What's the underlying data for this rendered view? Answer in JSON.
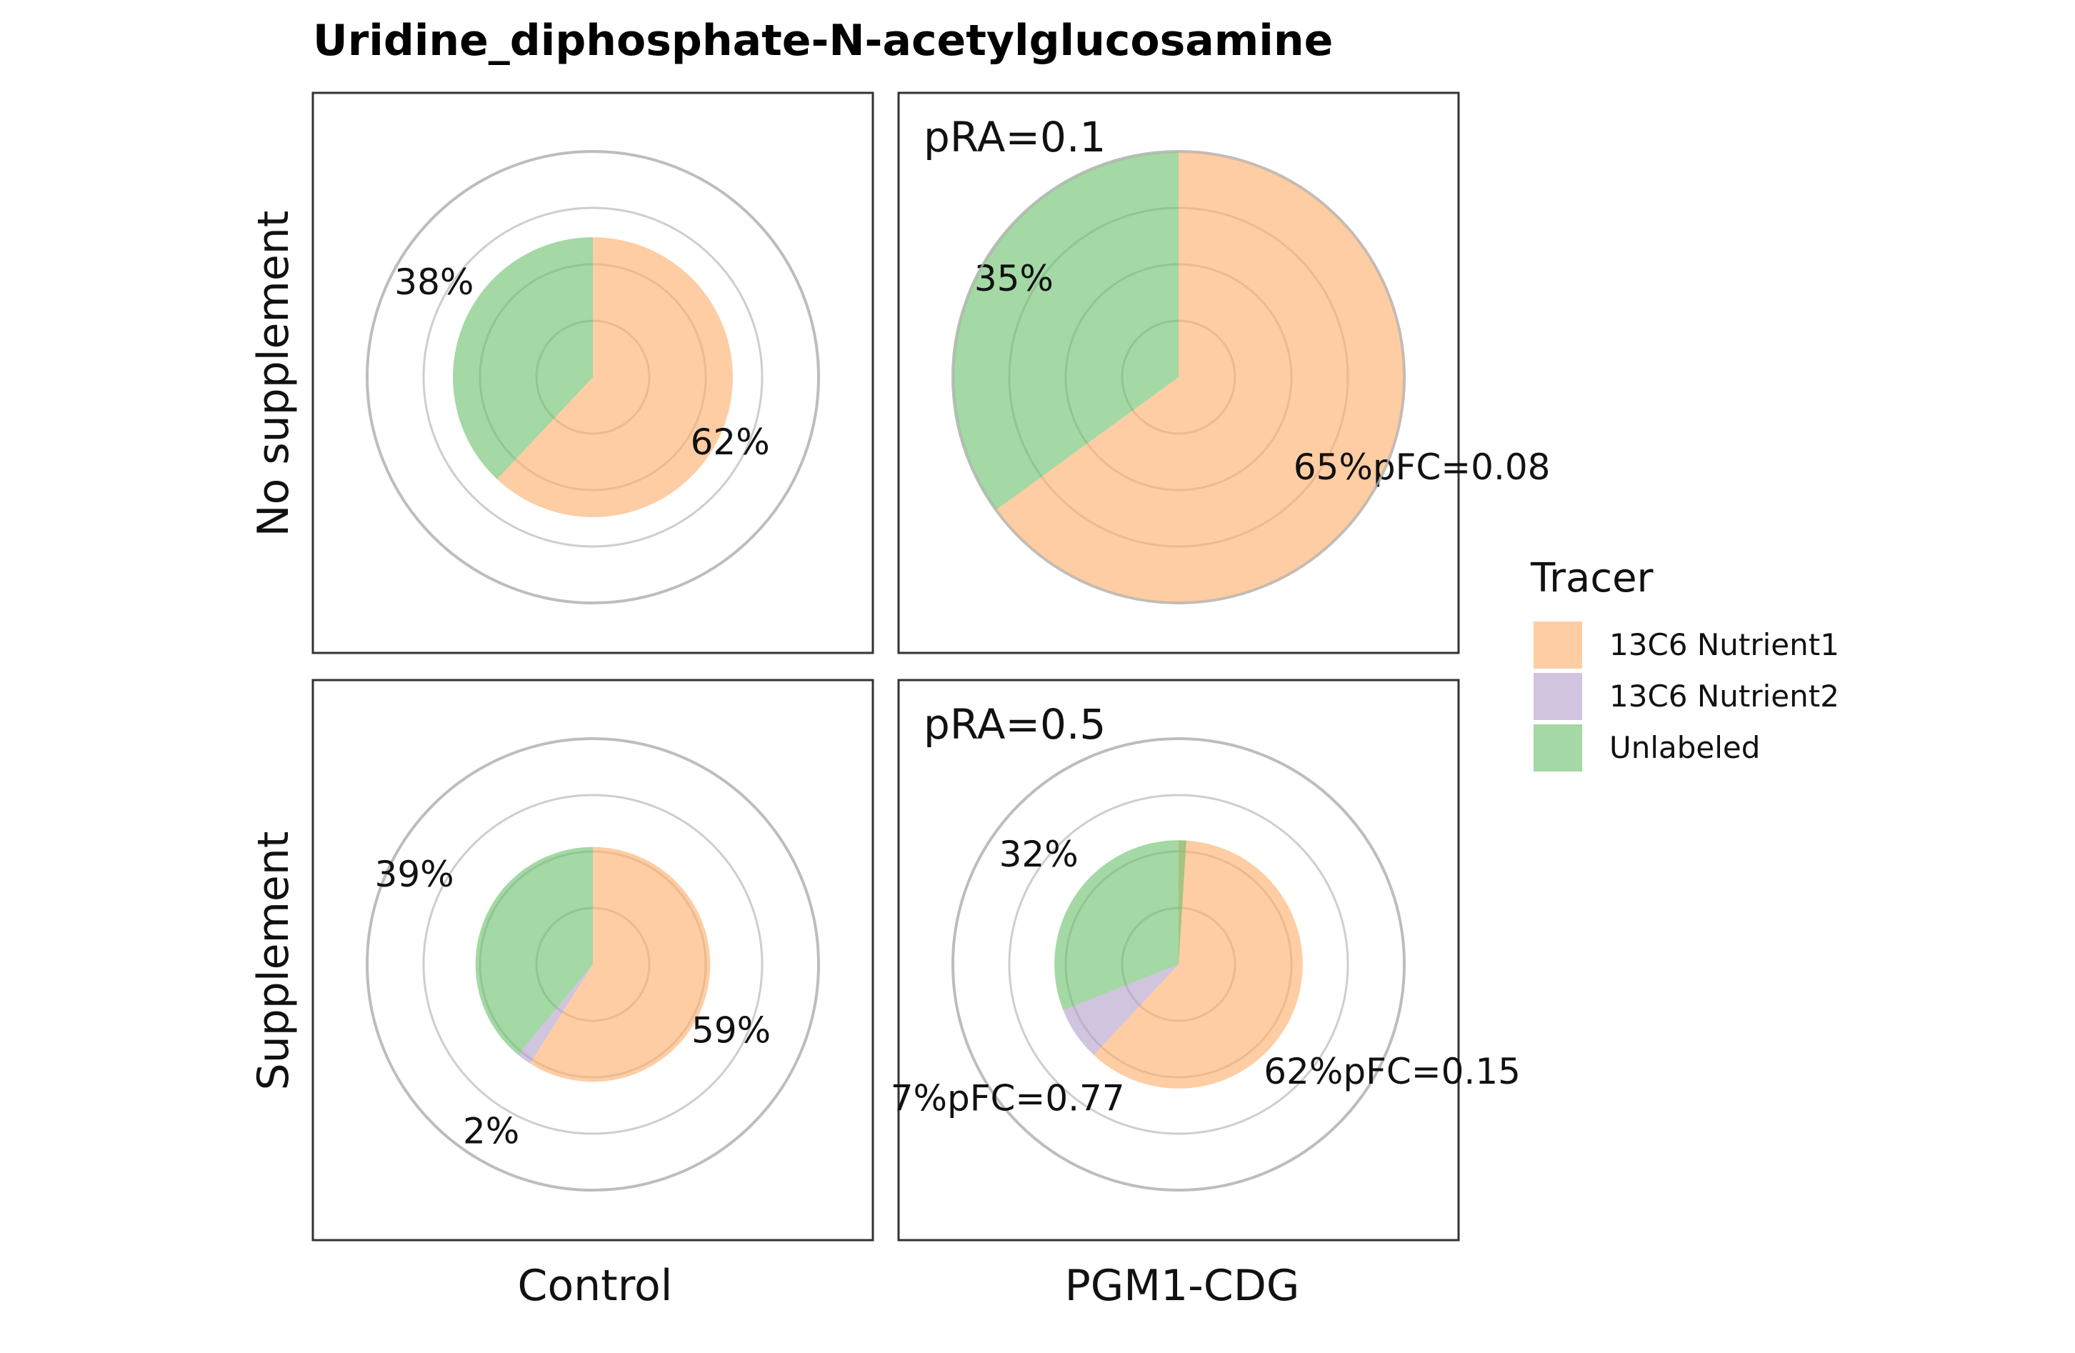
{
  "chart_data": {
    "type": "pie",
    "title": "Uridine_diphosphate-N-acetylglucosamine",
    "columns": [
      "Control",
      "PGM1-CDG"
    ],
    "rows": [
      "No supplement",
      "Supplement"
    ],
    "legend": {
      "title": "Tracer",
      "position": "right",
      "entries": [
        {
          "name": "13C6 Nutrient1",
          "color": "#fdae6b"
        },
        {
          "name": "13C6 Nutrient2",
          "color": "#b4a0cc"
        },
        {
          "name": "Unlabeled",
          "color": "#6cc06c"
        }
      ]
    },
    "colors": {
      "13C6 Nutrient1": "#fdae6b",
      "13C6 Nutrient2": "#b4a0cc",
      "Unlabeled": "#6cc06c"
    },
    "panels": [
      {
        "row": "No supplement",
        "column": "Control",
        "note": "",
        "total": 0.62,
        "slices": [
          {
            "tracer": "13C6 Nutrient1",
            "fraction": 0.62,
            "label": "62%"
          },
          {
            "tracer": "13C6 Nutrient2",
            "fraction": 0.0,
            "label": ""
          },
          {
            "tracer": "Unlabeled",
            "fraction": 0.38,
            "label": "38%"
          }
        ]
      },
      {
        "row": "No supplement",
        "column": "PGM1-CDG",
        "note": "pRA=0.1",
        "total": 1.0,
        "slices": [
          {
            "tracer": "13C6 Nutrient1",
            "fraction": 0.65,
            "label": "65%pFC=0.08"
          },
          {
            "tracer": "13C6 Nutrient2",
            "fraction": 0.0,
            "label": ""
          },
          {
            "tracer": "Unlabeled",
            "fraction": 0.35,
            "label": "35%"
          }
        ]
      },
      {
        "row": "Supplement",
        "column": "Control",
        "note": "",
        "total": 0.52,
        "slices": [
          {
            "tracer": "13C6 Nutrient1",
            "fraction": 0.59,
            "label": "59%"
          },
          {
            "tracer": "13C6 Nutrient2",
            "fraction": 0.02,
            "label": "2%"
          },
          {
            "tracer": "Unlabeled",
            "fraction": 0.39,
            "label": "39%"
          }
        ]
      },
      {
        "row": "Supplement",
        "column": "PGM1-CDG",
        "note": "pRA=0.5",
        "total": 0.55,
        "slices": [
          {
            "tracer": "13C6 Nutrient1",
            "fraction": 0.62,
            "label": "62%pFC=0.15"
          },
          {
            "tracer": "13C6 Nutrient2",
            "fraction": 0.07,
            "label": "7%pFC=0.77"
          },
          {
            "tracer": "Unlabeled",
            "fraction": 0.32,
            "label": "32%"
          }
        ]
      }
    ]
  }
}
